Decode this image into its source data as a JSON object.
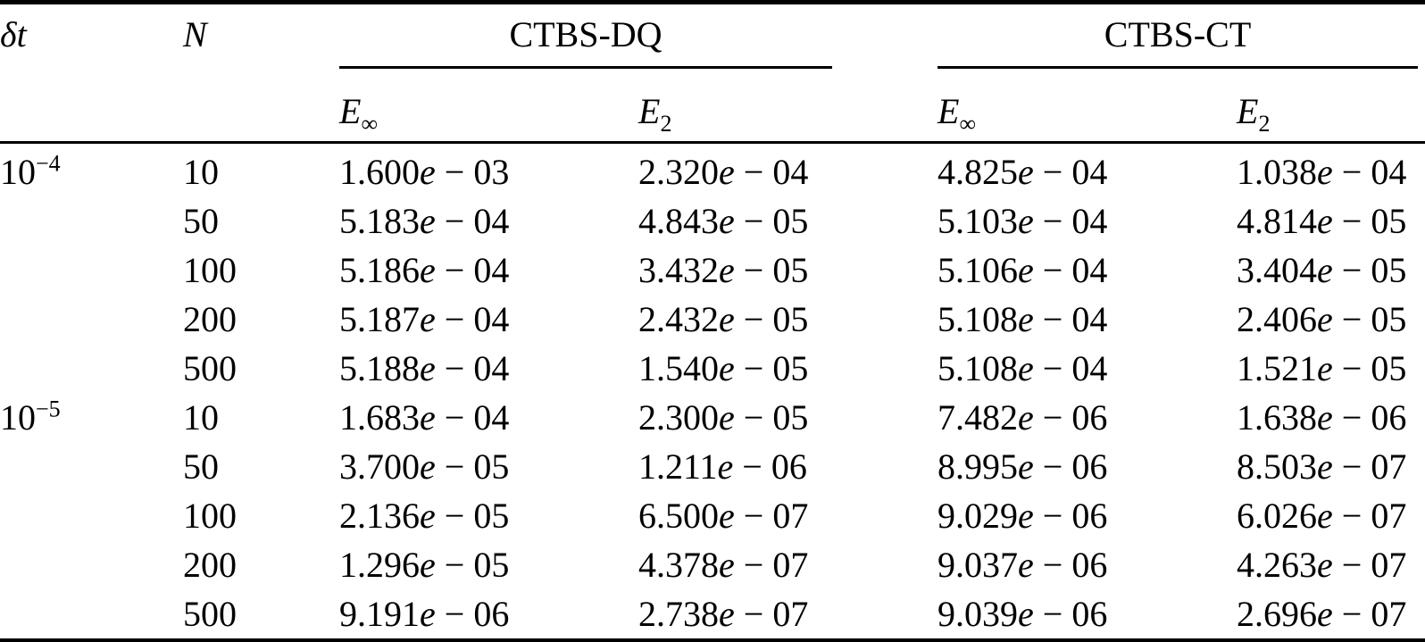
{
  "page": {
    "background": "#ffffff",
    "text_color": "#000000"
  },
  "table": {
    "headers": {
      "dt": "δt",
      "n": "N",
      "group_dq": "CTBS-DQ",
      "group_ct": "CTBS-CT",
      "e_base": "E",
      "sub_inf": "∞",
      "sub_2": "2"
    },
    "rows": [
      {
        "dt_base": "10",
        "dt_sup": "−4",
        "n": "10",
        "dq_einf": "1.600e − 03",
        "dq_e2": "2.320e − 04",
        "ct_einf": "4.825e − 04",
        "ct_e2": "1.038e − 04"
      },
      {
        "dt_base": "",
        "dt_sup": "",
        "n": "50",
        "dq_einf": "5.183e − 04",
        "dq_e2": "4.843e − 05",
        "ct_einf": "5.103e − 04",
        "ct_e2": "4.814e − 05"
      },
      {
        "dt_base": "",
        "dt_sup": "",
        "n": "100",
        "dq_einf": "5.186e − 04",
        "dq_e2": "3.432e − 05",
        "ct_einf": "5.106e − 04",
        "ct_e2": "3.404e − 05"
      },
      {
        "dt_base": "",
        "dt_sup": "",
        "n": "200",
        "dq_einf": "5.187e − 04",
        "dq_e2": "2.432e − 05",
        "ct_einf": "5.108e − 04",
        "ct_e2": "2.406e − 05"
      },
      {
        "dt_base": "",
        "dt_sup": "",
        "n": "500",
        "dq_einf": "5.188e − 04",
        "dq_e2": "1.540e − 05",
        "ct_einf": "5.108e − 04",
        "ct_e2": "1.521e − 05"
      },
      {
        "dt_base": "10",
        "dt_sup": "−5",
        "n": "10",
        "dq_einf": "1.683e − 04",
        "dq_e2": "2.300e − 05",
        "ct_einf": "7.482e − 06",
        "ct_e2": "1.638e − 06"
      },
      {
        "dt_base": "",
        "dt_sup": "",
        "n": "50",
        "dq_einf": "3.700e − 05",
        "dq_e2": "1.211e − 06",
        "ct_einf": "8.995e − 06",
        "ct_e2": "8.503e − 07"
      },
      {
        "dt_base": "",
        "dt_sup": "",
        "n": "100",
        "dq_einf": "2.136e − 05",
        "dq_e2": "6.500e − 07",
        "ct_einf": "9.029e − 06",
        "ct_e2": "6.026e − 07"
      },
      {
        "dt_base": "",
        "dt_sup": "",
        "n": "200",
        "dq_einf": "1.296e − 05",
        "dq_e2": "4.378e − 07",
        "ct_einf": "9.037e − 06",
        "ct_e2": "4.263e − 07"
      },
      {
        "dt_base": "",
        "dt_sup": "",
        "n": "500",
        "dq_einf": "9.191e − 06",
        "dq_e2": "2.738e − 07",
        "ct_einf": "9.039e − 06",
        "ct_e2": "2.696e − 07"
      }
    ]
  }
}
